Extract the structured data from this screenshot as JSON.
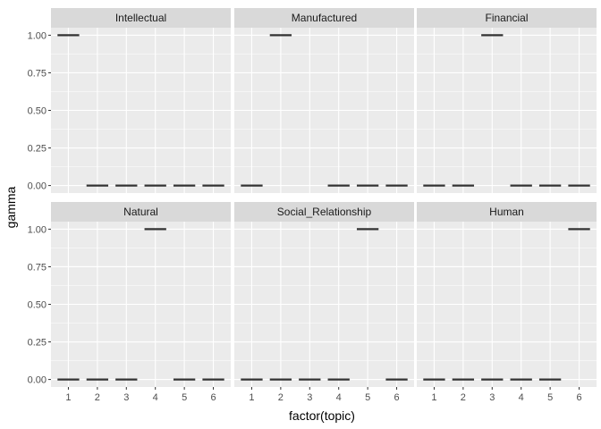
{
  "chart_data": {
    "type": "boxplot",
    "layout": "faceted 2x3 grid",
    "xlabel": "factor(topic)",
    "ylabel": "gamma",
    "categories": [
      "1",
      "2",
      "3",
      "4",
      "5",
      "6"
    ],
    "ylim": [
      -0.05,
      1.05
    ],
    "yticks": [
      0.0,
      0.25,
      0.5,
      0.75,
      1.0
    ],
    "ytick_labels": [
      "0.00",
      "0.25",
      "0.50",
      "0.75",
      "1.00"
    ],
    "grid": true,
    "facets": [
      {
        "label": "Intellectual",
        "values": [
          1,
          0,
          0,
          0,
          0,
          0
        ]
      },
      {
        "label": "Manufactured",
        "values": [
          0,
          1,
          null,
          0,
          0,
          0
        ]
      },
      {
        "label": "Financial",
        "values": [
          0,
          0,
          1,
          0,
          0,
          0
        ]
      },
      {
        "label": "Natural",
        "values": [
          0,
          0,
          0,
          1,
          0,
          0
        ]
      },
      {
        "label": "Social_Relationship",
        "values": [
          0,
          0,
          0,
          0,
          1,
          0
        ]
      },
      {
        "label": "Human",
        "values": [
          0,
          0,
          0,
          0,
          0,
          1
        ]
      }
    ],
    "colors": {
      "panel_bg": "#EBEBEB",
      "strip_bg": "#D9D9D9",
      "grid": "#FFFFFF",
      "mark": "#333333"
    }
  }
}
